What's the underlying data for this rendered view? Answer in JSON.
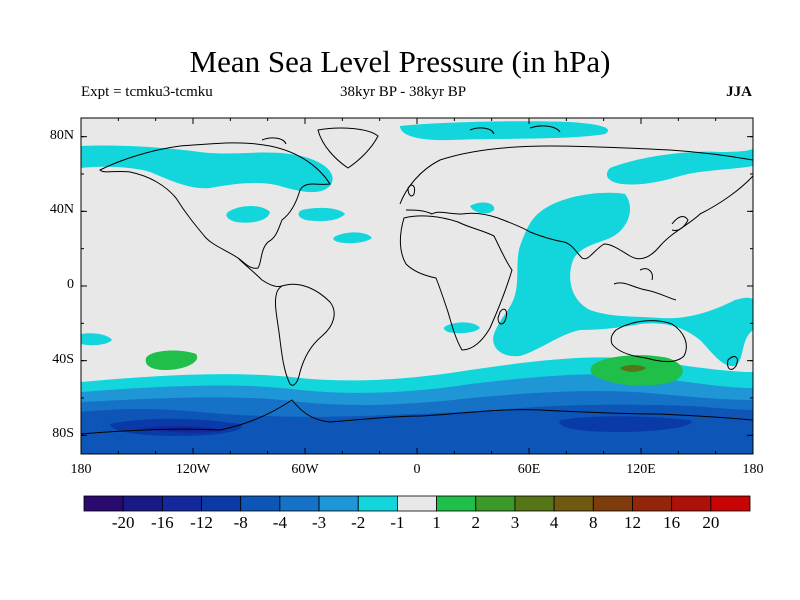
{
  "title": "Mean Sea Level Pressure (in hPa)",
  "subtitle_left": "Expt = tcmku3-tcmku",
  "subtitle_center": "38kyr BP - 38kyr BP",
  "subtitle_right": "JJA",
  "y_ticks": [
    {
      "label": "80N",
      "lat": 80
    },
    {
      "label": "40N",
      "lat": 40
    },
    {
      "label": "0",
      "lat": 0
    },
    {
      "label": "40S",
      "lat": -40
    },
    {
      "label": "80S",
      "lat": -80
    }
  ],
  "x_ticks": [
    {
      "label": "180",
      "lon": -180
    },
    {
      "label": "120W",
      "lon": -120
    },
    {
      "label": "60W",
      "lon": -60
    },
    {
      "label": "0",
      "lon": 0
    },
    {
      "label": "60E",
      "lon": 60
    },
    {
      "label": "120E",
      "lon": 120
    },
    {
      "label": "180",
      "lon": 180
    }
  ],
  "colorbar": {
    "colors": [
      "#2a0a6e",
      "#1a1a86",
      "#14289c",
      "#0a3aa8",
      "#0d56b8",
      "#1672c6",
      "#1f96d6",
      "#12d6dc",
      "#e8e8e8",
      "#1fbf4a",
      "#3c9a2a",
      "#557516",
      "#6e5a10",
      "#7e3c0c",
      "#92260a",
      "#ad1208",
      "#c80404"
    ],
    "labels": [
      "-20",
      "-16",
      "-12",
      "-8",
      "-4",
      "-3",
      "-2",
      "-1",
      "1",
      "2",
      "3",
      "4",
      "8",
      "12",
      "16",
      "20"
    ]
  }
}
